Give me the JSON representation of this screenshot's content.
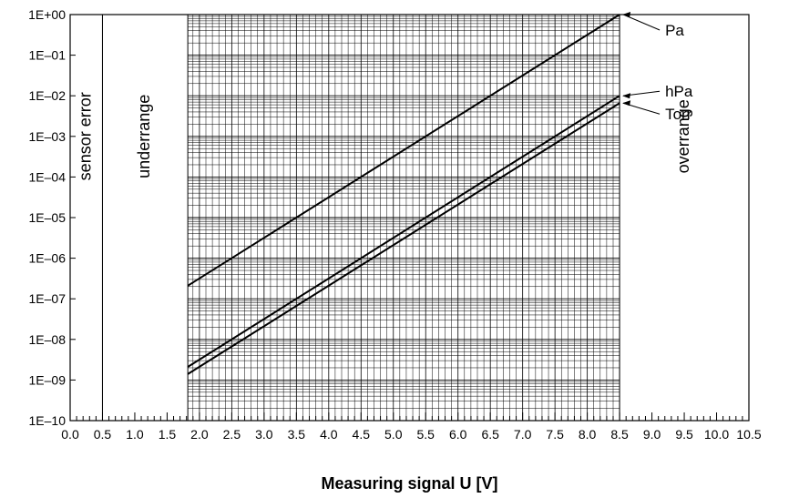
{
  "chart_data": {
    "type": "line",
    "title": "",
    "xlabel": "Measuring signal U [V]",
    "ylabel": "",
    "xlim": [
      0,
      10.5
    ],
    "ylim": [
      1e-10,
      1
    ],
    "y_scale": "log",
    "grid": true,
    "x_ticks": [
      "0.0",
      "0.5",
      "1.0",
      "1.5",
      "2.0",
      "2.5",
      "3.0",
      "3.5",
      "4.0",
      "4.5",
      "5.0",
      "5.5",
      "6.0",
      "6.5",
      "7.0",
      "7.5",
      "8.0",
      "8.5",
      "9.0",
      "9.5",
      "10.0",
      "10.5"
    ],
    "y_ticks": [
      "1E+00",
      "1E–01",
      "1E–02",
      "1E–03",
      "1E–04",
      "1E–05",
      "1E–06",
      "1E–07",
      "1E–08",
      "1E–09",
      "1E–10"
    ],
    "regions": [
      {
        "label": "sensor error",
        "x_from": 0,
        "x_to": 0.5
      },
      {
        "label": "underrange",
        "x_from": 0.5,
        "x_to": 1.82
      },
      {
        "label": "overrange",
        "x_from": 8.5,
        "x_to": 10.5
      }
    ],
    "series": [
      {
        "name": "Pa",
        "x": [
          1.82,
          8.5
        ],
        "y": [
          2.1e-07,
          1
        ]
      },
      {
        "name": "hPa",
        "x": [
          1.82,
          8.5
        ],
        "y": [
          2.1e-09,
          0.01
        ]
      },
      {
        "name": "Torr",
        "x": [
          1.82,
          8.5
        ],
        "y": [
          1.4e-09,
          0.0066
        ]
      }
    ]
  },
  "colors": {
    "line": "#000000",
    "grid": "#000000",
    "background": "#ffffff"
  }
}
